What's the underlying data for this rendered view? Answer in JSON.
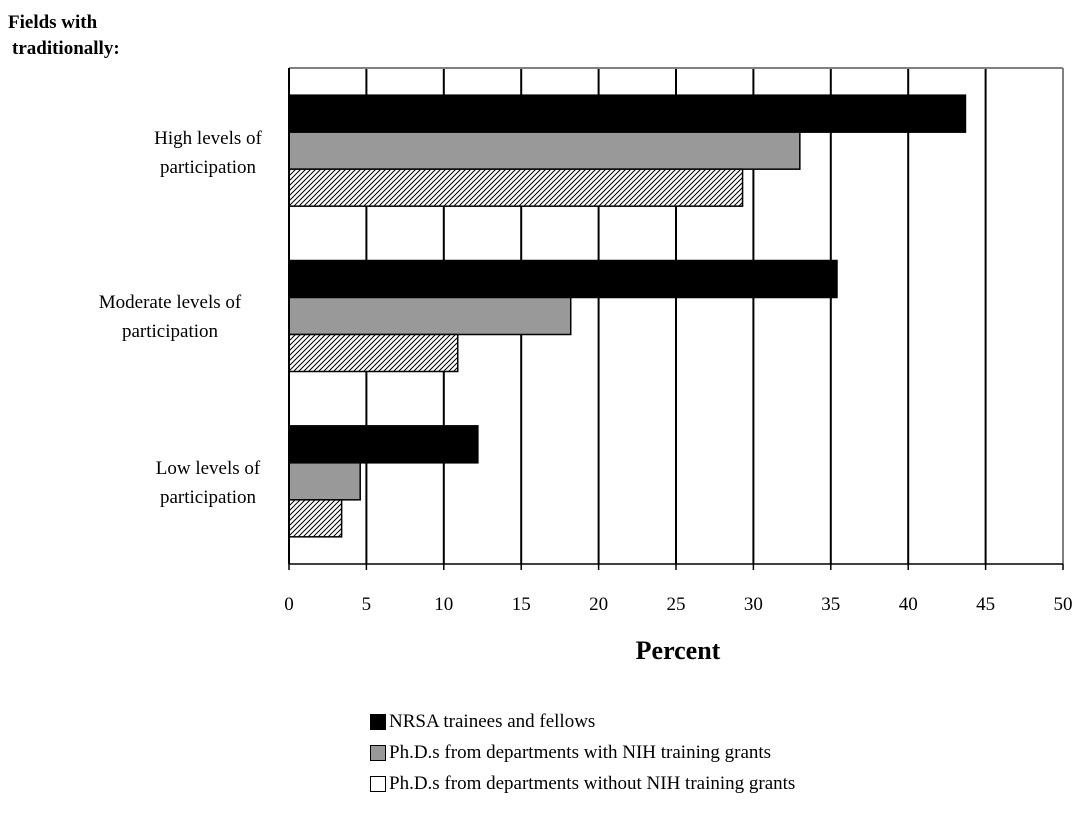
{
  "chart_data": {
    "type": "bar",
    "orientation": "horizontal",
    "group_title": [
      "Fields with",
      "traditionally:"
    ],
    "categories": [
      [
        "High levels of",
        "participation"
      ],
      [
        "Moderate levels of",
        "participation"
      ],
      [
        "Low levels of",
        "participation"
      ]
    ],
    "series": [
      {
        "name": "NRSA trainees and fellows",
        "values": [
          43.7,
          35.4,
          12.2
        ],
        "fill": "#000000",
        "pattern": "solid"
      },
      {
        "name": "Ph.D.s from departments with NIH training grants",
        "values": [
          33.0,
          18.2,
          4.6
        ],
        "fill": "#999999",
        "pattern": "solid"
      },
      {
        "name": "Ph.D.s from departments without NIH training grants",
        "values": [
          29.3,
          10.9,
          3.4
        ],
        "fill": "#ffffff",
        "pattern": "diagonal-hatch"
      }
    ],
    "xlabel": "Percent",
    "xlim": [
      0,
      50
    ],
    "xticks": [
      0,
      5,
      10,
      15,
      20,
      25,
      30,
      35,
      40,
      45,
      50
    ],
    "grid": "vertical",
    "legend_position": "bottom"
  }
}
